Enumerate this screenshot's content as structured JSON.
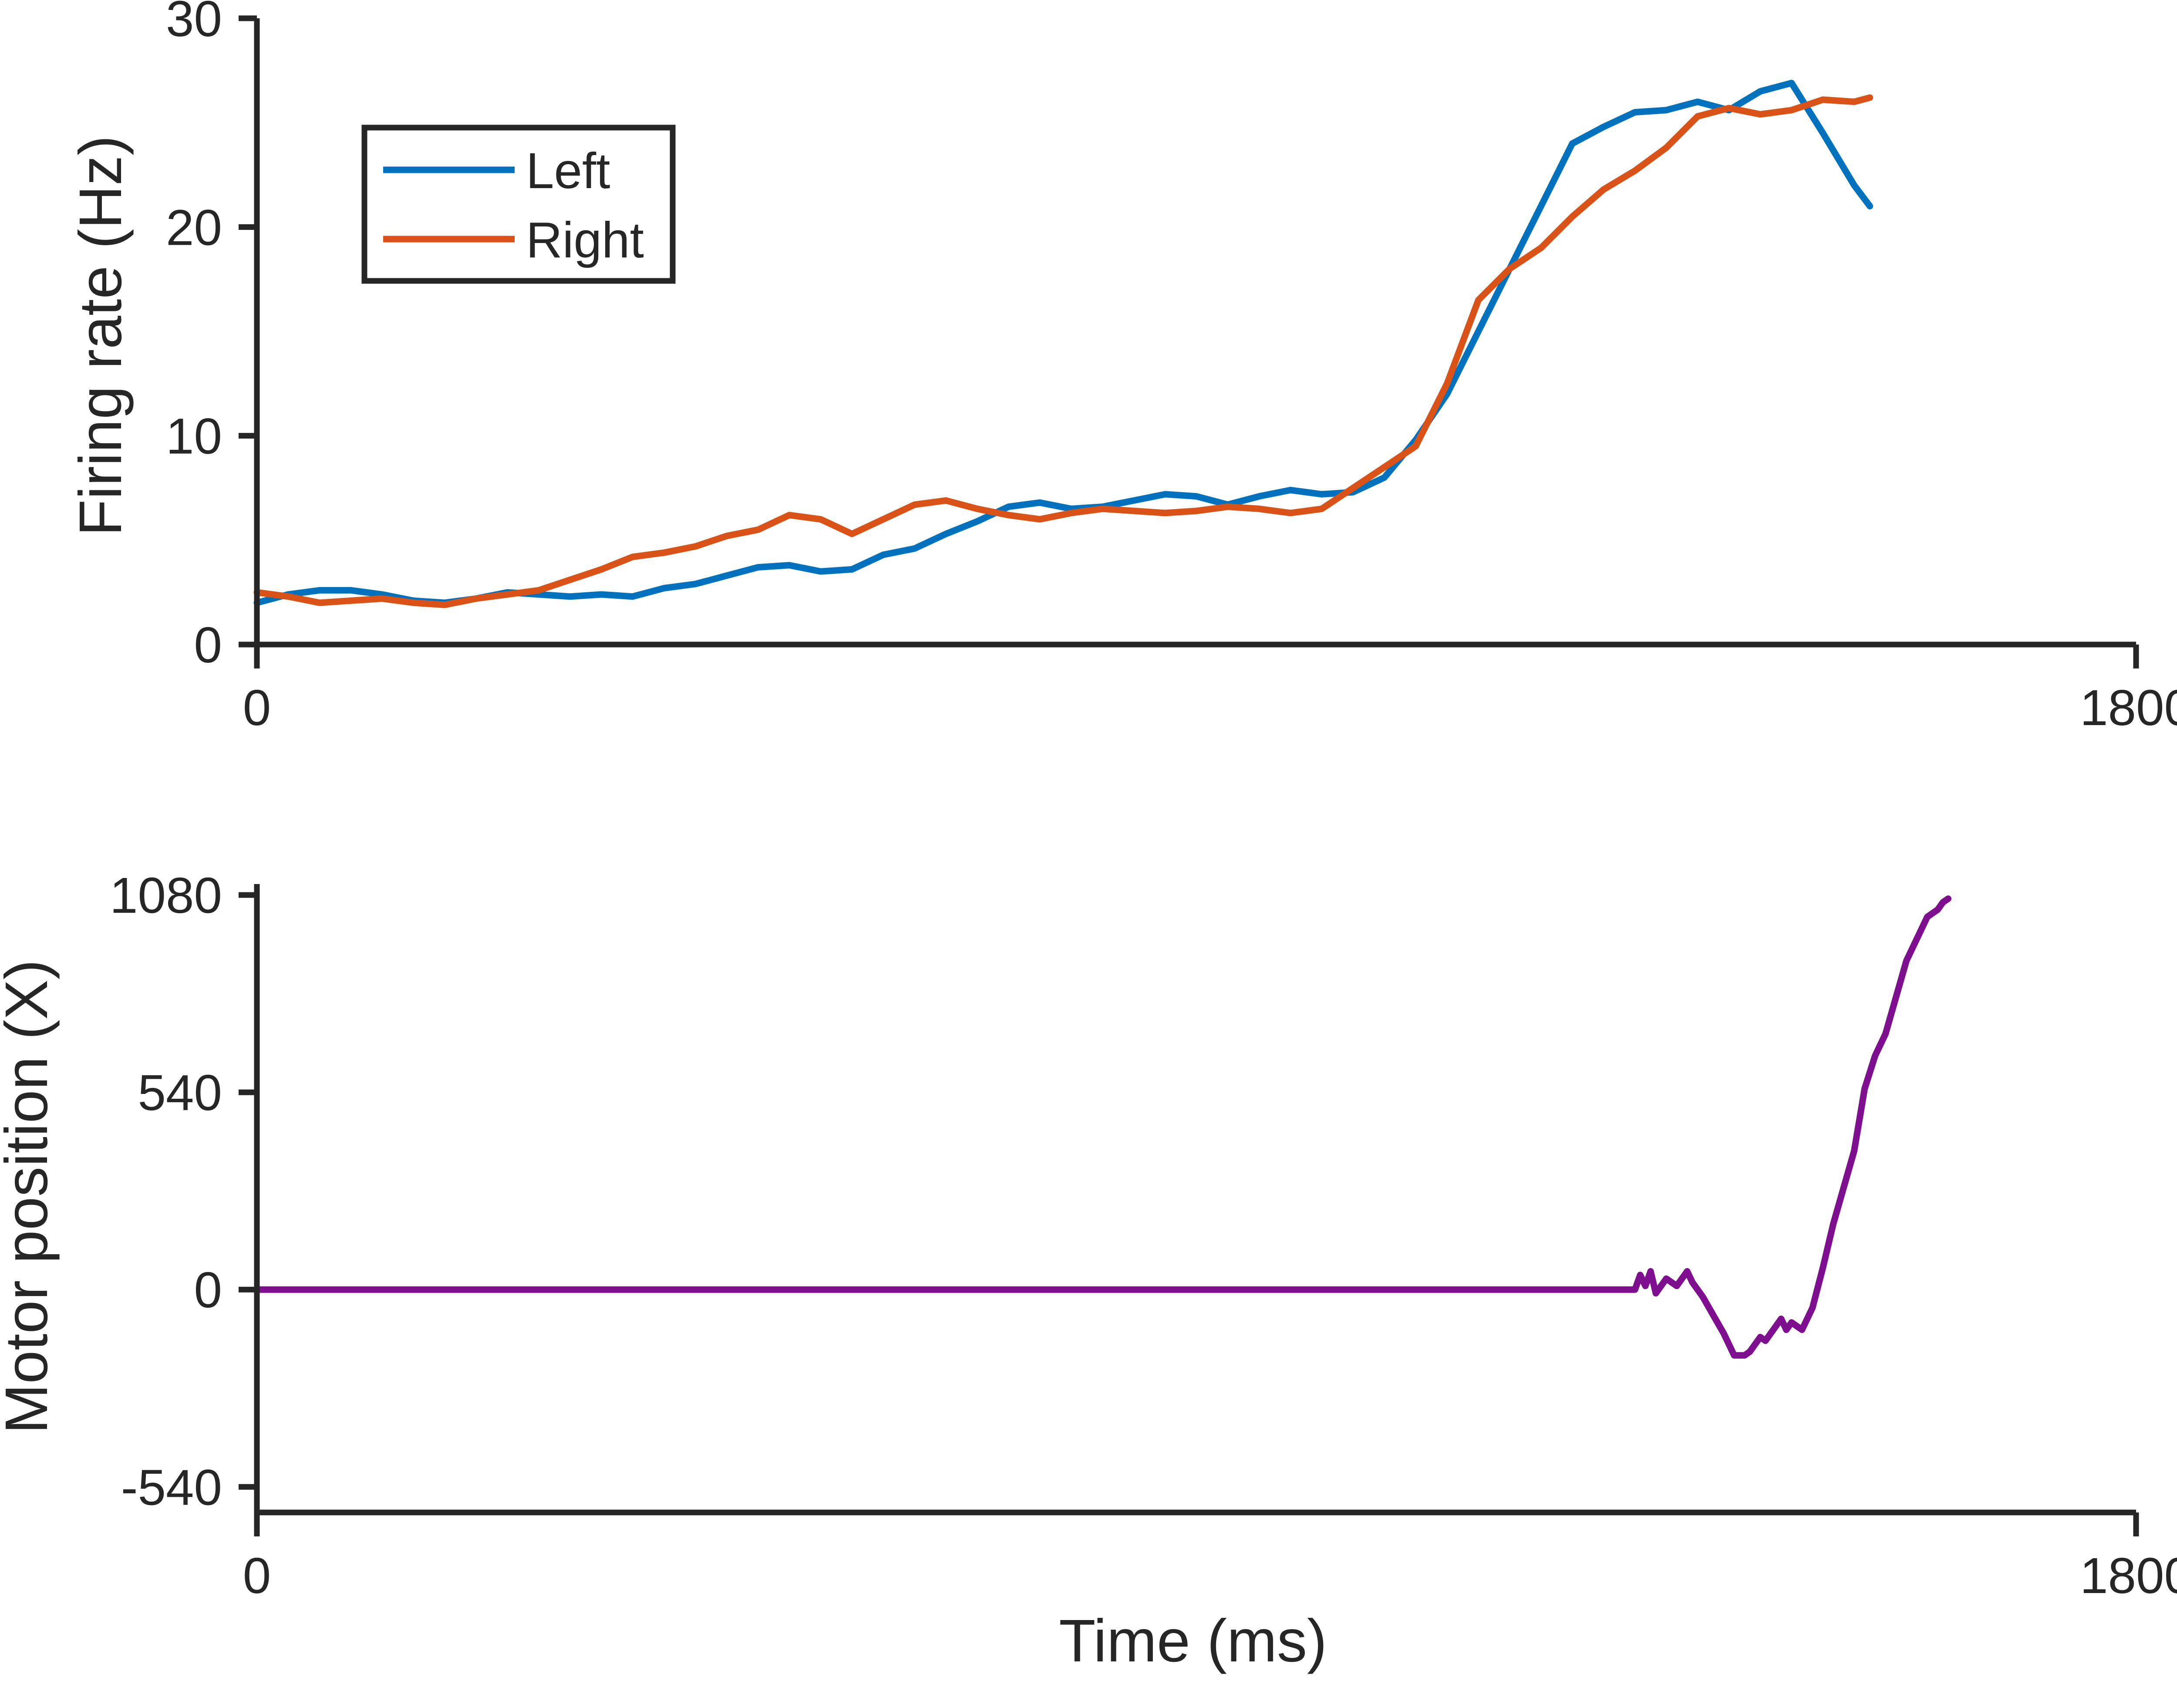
{
  "chart_data": [
    {
      "type": "line",
      "xlabel": "",
      "ylabel": "Firing rate (Hz)",
      "xlim": [
        0,
        1800
      ],
      "ylim": [
        0,
        30
      ],
      "xticks": [
        {
          "value": 0,
          "label": "0"
        },
        {
          "value": 1800,
          "label": "1800"
        }
      ],
      "yticks": [
        {
          "value": 0,
          "label": "0"
        },
        {
          "value": 10,
          "label": "10"
        },
        {
          "value": 20,
          "label": "20"
        },
        {
          "value": 30,
          "label": "30"
        }
      ],
      "grid": false,
      "legend": {
        "placement": "top-left",
        "entries": [
          "Left",
          "Right"
        ]
      },
      "series": [
        {
          "name": "Left",
          "color": "#0072BD",
          "x": [
            0,
            30,
            60,
            90,
            120,
            150,
            180,
            210,
            240,
            270,
            300,
            330,
            360,
            390,
            420,
            450,
            480,
            510,
            540,
            570,
            600,
            630,
            660,
            690,
            720,
            750,
            780,
            810,
            840,
            870,
            900,
            930,
            960,
            990,
            1020,
            1050,
            1080,
            1110,
            1140,
            1170,
            1200,
            1230,
            1260,
            1290,
            1320,
            1350,
            1380,
            1410,
            1440,
            1470,
            1500,
            1530,
            1545
          ],
          "y": [
            2.0,
            2.4,
            2.6,
            2.6,
            2.4,
            2.1,
            2.0,
            2.2,
            2.5,
            2.4,
            2.3,
            2.4,
            2.3,
            2.7,
            2.9,
            3.3,
            3.7,
            3.8,
            3.5,
            3.6,
            4.3,
            4.6,
            5.3,
            5.9,
            6.6,
            6.8,
            6.5,
            6.6,
            6.9,
            7.2,
            7.1,
            6.7,
            7.1,
            7.4,
            7.2,
            7.3,
            8.0,
            9.8,
            12.0,
            15.0,
            18.0,
            21.0,
            24.0,
            24.8,
            25.5,
            25.6,
            26.0,
            25.6,
            26.5,
            26.9,
            24.5,
            22.0,
            21.0
          ]
        },
        {
          "name": "Right",
          "color": "#D95319",
          "x": [
            0,
            30,
            60,
            90,
            120,
            150,
            180,
            210,
            240,
            270,
            300,
            330,
            360,
            390,
            420,
            450,
            480,
            510,
            540,
            570,
            600,
            630,
            660,
            690,
            720,
            750,
            780,
            810,
            840,
            870,
            900,
            930,
            960,
            990,
            1020,
            1050,
            1080,
            1110,
            1140,
            1170,
            1200,
            1230,
            1260,
            1290,
            1320,
            1350,
            1380,
            1410,
            1440,
            1470,
            1500,
            1530,
            1545
          ],
          "y": [
            2.5,
            2.3,
            2.0,
            2.1,
            2.2,
            2.0,
            1.9,
            2.2,
            2.4,
            2.6,
            3.1,
            3.6,
            4.2,
            4.4,
            4.7,
            5.2,
            5.5,
            6.2,
            6.0,
            5.3,
            6.0,
            6.7,
            6.9,
            6.5,
            6.2,
            6.0,
            6.3,
            6.5,
            6.4,
            6.3,
            6.4,
            6.6,
            6.5,
            6.3,
            6.5,
            7.5,
            8.5,
            9.5,
            12.5,
            16.5,
            18.0,
            19.0,
            20.5,
            21.8,
            22.7,
            23.8,
            25.3,
            25.7,
            25.4,
            25.6,
            26.1,
            26.0,
            26.2
          ]
        }
      ]
    },
    {
      "type": "line",
      "xlabel": "Time (ms)",
      "ylabel": "Motor position (X)",
      "xlim": [
        0,
        1800
      ],
      "ylim": [
        -610,
        1110
      ],
      "xticks": [
        {
          "value": 0,
          "label": "0"
        },
        {
          "value": 1800,
          "label": "1800"
        }
      ],
      "yticks": [
        {
          "value": -540,
          "label": "-540"
        },
        {
          "value": 0,
          "label": "0"
        },
        {
          "value": 540,
          "label": "540"
        },
        {
          "value": 1080,
          "label": "1080"
        }
      ],
      "grid": false,
      "legend": null,
      "series": [
        {
          "color": "#7E0F8E",
          "x": [
            0,
            1320,
            1325,
            1330,
            1335,
            1340,
            1350,
            1360,
            1370,
            1375,
            1385,
            1395,
            1405,
            1415,
            1425,
            1430,
            1440,
            1445,
            1450,
            1460,
            1465,
            1470,
            1480,
            1490,
            1500,
            1510,
            1520,
            1530,
            1540,
            1550,
            1560,
            1570,
            1580,
            1590,
            1600,
            1610,
            1615,
            1620
          ],
          "y": [
            0,
            0,
            40,
            10,
            50,
            -10,
            30,
            10,
            50,
            20,
            -20,
            -70,
            -120,
            -180,
            -180,
            -170,
            -130,
            -140,
            -120,
            -80,
            -110,
            -90,
            -110,
            -50,
            60,
            180,
            280,
            380,
            550,
            640,
            700,
            800,
            900,
            960,
            1020,
            1040,
            1060,
            1070
          ]
        }
      ]
    }
  ]
}
